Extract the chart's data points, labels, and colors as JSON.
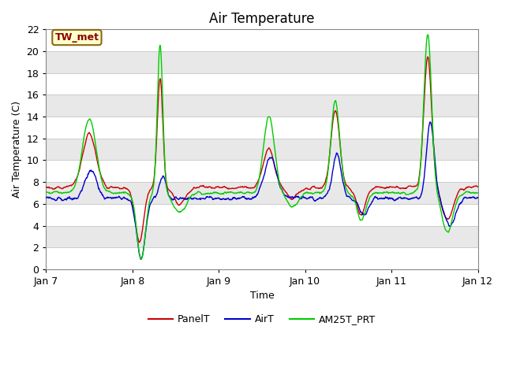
{
  "title": "Air Temperature",
  "xlabel": "Time",
  "ylabel": "Air Temperature (C)",
  "ylim": [
    0,
    22
  ],
  "yticks": [
    0,
    2,
    4,
    6,
    8,
    10,
    12,
    14,
    16,
    18,
    20,
    22
  ],
  "xtick_labels": [
    "Jan 7",
    "Jan 8",
    "Jan 9",
    "Jan 10",
    "Jan 11",
    "Jan 12"
  ],
  "annotation_text": "TW_met",
  "annotation_bg": "#ffffcc",
  "annotation_border": "#8B6914",
  "line_colors": {
    "PanelT": "#cc0000",
    "AirT": "#0000cc",
    "AM25T_PRT": "#00cc00"
  },
  "band_colors": [
    "#ffffff",
    "#e8e8e8"
  ],
  "outer_bg": "#ffffff",
  "grid_line_color": "#cccccc",
  "title_fontsize": 12,
  "label_fontsize": 9,
  "tick_fontsize": 9
}
